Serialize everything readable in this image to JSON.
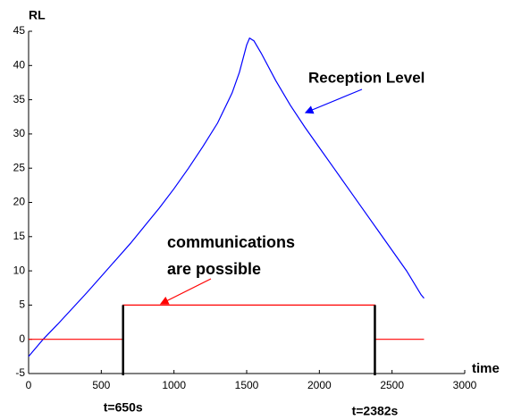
{
  "chart_data": {
    "type": "line",
    "ylabel": "RL",
    "xlabel": "time",
    "xlim": [
      0,
      3000
    ],
    "xticks": [
      0,
      500,
      1000,
      1500,
      2000,
      2500,
      3000
    ],
    "ylim": [
      -5,
      45
    ],
    "yticks": [
      -5,
      0,
      5,
      10,
      15,
      20,
      25,
      30,
      35,
      40,
      45
    ],
    "series": [
      {
        "color": "#0000ff",
        "x": [
          0,
          100,
          200,
          300,
          400,
          500,
          600,
          700,
          800,
          900,
          1000,
          1100,
          1200,
          1300,
          1400,
          1450,
          1500,
          1520,
          1550,
          1600,
          1700,
          1800,
          1900,
          2000,
          2100,
          2200,
          2300,
          2400,
          2500,
          2600,
          2700,
          2720
        ],
        "values": [
          -2.5,
          0,
          2.2,
          4.5,
          6.8,
          9.2,
          11.6,
          14,
          16.6,
          19.2,
          22,
          25,
          28.2,
          31.6,
          36,
          39,
          43,
          44,
          43.6,
          41.8,
          37.8,
          34.2,
          31,
          28,
          25,
          22,
          19,
          16,
          13,
          10,
          6.5,
          6
        ]
      },
      {
        "color": "#ff0000",
        "x": [
          0,
          650,
          650,
          2382,
          2382,
          2720
        ],
        "values": [
          0,
          0,
          5,
          5,
          0,
          0
        ]
      }
    ],
    "thresholds": [
      {
        "x": 650,
        "label": "t=650s"
      },
      {
        "x": 2382,
        "label": "t=2382s"
      }
    ],
    "threshold_top": 5,
    "annotations": [
      "Reception Level",
      "communications",
      "are possible"
    ]
  }
}
